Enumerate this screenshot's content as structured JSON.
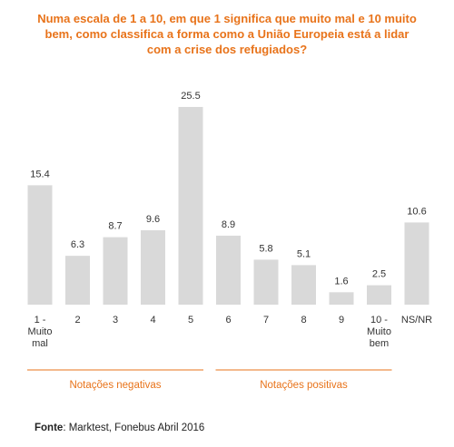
{
  "title_lines": [
    "Numa escala de 1 a 10, em que 1 significa que muito mal e 10 muito",
    "bem, como classifica a forma como a União Europeia está a lidar",
    "com a crise dos refugiados?"
  ],
  "chart_data": {
    "type": "bar",
    "categories": [
      [
        "1 -",
        "Muito",
        "mal"
      ],
      [
        "2"
      ],
      [
        "3"
      ],
      [
        "4"
      ],
      [
        "5"
      ],
      [
        "6"
      ],
      [
        "7"
      ],
      [
        "8"
      ],
      [
        "9"
      ],
      [
        "10 -",
        "Muito",
        "bem"
      ],
      [
        "NS/NR"
      ]
    ],
    "values": [
      15.4,
      6.3,
      8.7,
      9.6,
      25.5,
      8.9,
      5.8,
      5.1,
      1.6,
      2.5,
      10.6
    ],
    "value_labels": [
      "15.4",
      "6.3",
      "8.7",
      "9.6",
      "25.5",
      "8.9",
      "5.8",
      "5.1",
      "1.6",
      "2.5",
      "10.6"
    ],
    "groups": [
      {
        "label": "Notações negativas",
        "from": 0,
        "to": 4
      },
      {
        "label": "Notações positivas",
        "from": 5,
        "to": 9
      }
    ],
    "bar_color": "#D9D9D9",
    "accent_color": "#E8731A"
  },
  "source": {
    "label": "Fonte",
    "text": ": Marktest, Fonebus Abril 2016"
  }
}
